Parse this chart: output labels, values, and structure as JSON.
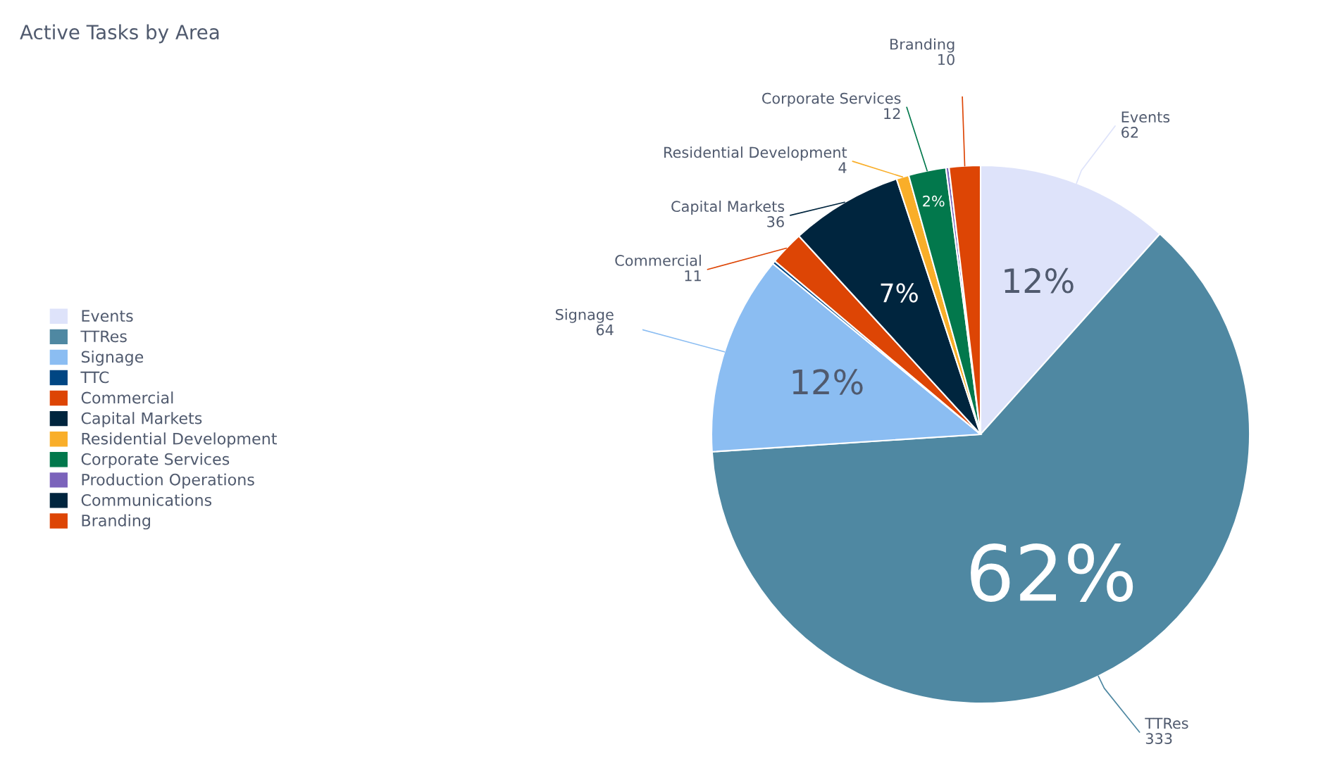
{
  "chart_data": {
    "type": "pie",
    "title": "Active Tasks by Area",
    "categories": [
      "Events",
      "TTRes",
      "Signage",
      "TTC",
      "Commercial",
      "Capital Markets",
      "Residential Development",
      "Corporate Services",
      "Production Operations",
      "Communications",
      "Branding"
    ],
    "values": [
      62,
      333,
      64,
      1,
      11,
      36,
      4,
      12,
      1,
      0,
      10
    ],
    "colors": [
      "#dee3fa",
      "#4f88a2",
      "#8bbdf2",
      "#004683",
      "#dd4505",
      "#00253e",
      "#f9ae29",
      "#02784c",
      "#7b63bb",
      "#00253e",
      "#dd4505"
    ],
    "value_labels": [
      "62",
      "333",
      "64",
      null,
      "11",
      "36",
      "4",
      "12",
      null,
      null,
      "10"
    ],
    "annotations": [
      {
        "text": "12%",
        "x": "Events"
      },
      {
        "text": "62%",
        "x": "TTRes"
      },
      {
        "text": "12%",
        "x": "Signage"
      },
      {
        "text": "7%",
        "x": "Capital Markets"
      },
      {
        "text": "2%",
        "x": "Corporate Services"
      }
    ],
    "legend": "left"
  }
}
